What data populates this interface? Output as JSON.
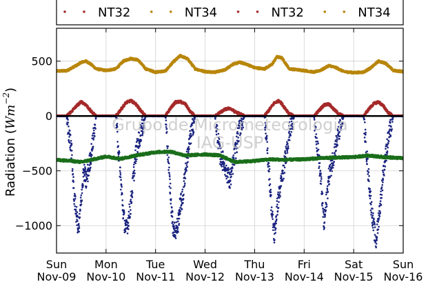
{
  "chart_data": {
    "type": "scatter",
    "title": "",
    "xlabel": "",
    "ylabel": "Radiation (Wm^-2)",
    "ylabel_parts": {
      "text": "Radiation (",
      "unit_base": "Wm",
      "unit_exp": "−2",
      "close": ")"
    },
    "xlim": [
      0,
      7
    ],
    "ylim": [
      -1250,
      800
    ],
    "yticks": [
      500,
      0,
      -500,
      -1000
    ],
    "ytick_labels": [
      "500",
      "0",
      "−500",
      "−1000"
    ],
    "xticks": [
      0,
      1,
      2,
      3,
      4,
      5,
      6,
      7
    ],
    "xtick_labels": [
      [
        "Sun",
        "Nov-09"
      ],
      [
        "Mon",
        "Nov-10"
      ],
      [
        "Tue",
        "Nov-11"
      ],
      [
        "Wed",
        "Nov-12"
      ],
      [
        "Thu",
        "Nov-13"
      ],
      [
        "Fri",
        "Nov-14"
      ],
      [
        "Sat",
        "Nov-15"
      ],
      [
        "Sun",
        "Nov-16"
      ]
    ],
    "grid": true,
    "legend_position": "top",
    "legend": [
      {
        "name": "NT32",
        "color": "#a52a2a"
      },
      {
        "name": "NT34",
        "color": "#b8860b"
      },
      {
        "name": "NT32",
        "color": "#a52a2a"
      },
      {
        "name": "NT34",
        "color": "#b8860b"
      }
    ],
    "series": [
      {
        "name": "NT34",
        "color": "#b8860b",
        "x": [
          0,
          0.2,
          0.4,
          0.5,
          0.6,
          0.7,
          0.8,
          1.0,
          1.2,
          1.35,
          1.5,
          1.65,
          1.8,
          2.0,
          2.2,
          2.35,
          2.5,
          2.65,
          2.8,
          3.0,
          3.2,
          3.4,
          3.55,
          3.7,
          3.85,
          4.0,
          4.2,
          4.35,
          4.45,
          4.55,
          4.7,
          5.0,
          5.2,
          5.35,
          5.5,
          5.65,
          5.8,
          6.0,
          6.2,
          6.35,
          6.5,
          6.65,
          6.8,
          7.0
        ],
        "values": [
          410,
          412,
          460,
          490,
          500,
          470,
          430,
          415,
          430,
          500,
          525,
          510,
          430,
          400,
          410,
          490,
          550,
          520,
          430,
          405,
          400,
          420,
          470,
          490,
          470,
          440,
          430,
          470,
          540,
          530,
          430,
          415,
          400,
          420,
          460,
          440,
          405,
          395,
          400,
          440,
          500,
          480,
          415,
          405
        ]
      },
      {
        "name": "NT32",
        "color": "#a52a2a",
        "x": [
          0,
          0.2,
          0.3,
          0.4,
          0.5,
          0.6,
          0.7,
          0.8,
          1.0,
          1.2,
          1.3,
          1.4,
          1.5,
          1.6,
          1.7,
          1.8,
          2.0,
          2.2,
          2.3,
          2.4,
          2.5,
          2.6,
          2.7,
          2.8,
          3.0,
          3.2,
          3.3,
          3.4,
          3.5,
          3.6,
          3.7,
          3.8,
          4.0,
          4.2,
          4.3,
          4.4,
          4.5,
          4.6,
          4.7,
          4.8,
          5.0,
          5.2,
          5.3,
          5.4,
          5.5,
          5.6,
          5.7,
          5.8,
          6.0,
          6.2,
          6.3,
          6.4,
          6.5,
          6.6,
          6.7,
          6.8,
          7.0
        ],
        "values": [
          0,
          0,
          40,
          90,
          130,
          100,
          40,
          0,
          0,
          0,
          60,
          120,
          140,
          110,
          50,
          0,
          0,
          0,
          70,
          125,
          130,
          110,
          40,
          0,
          0,
          0,
          30,
          60,
          70,
          40,
          20,
          0,
          0,
          0,
          60,
          120,
          140,
          80,
          20,
          0,
          0,
          0,
          50,
          100,
          110,
          60,
          20,
          0,
          0,
          0,
          60,
          110,
          130,
          90,
          30,
          0,
          0
        ]
      },
      {
        "name": "NT32",
        "color": "#1a237e",
        "x": [
          0,
          0.2,
          0.3,
          0.35,
          0.4,
          0.45,
          0.5,
          0.55,
          0.6,
          0.7,
          0.8,
          1.0,
          1.2,
          1.3,
          1.35,
          1.4,
          1.45,
          1.5,
          1.6,
          1.7,
          1.8,
          2.0,
          2.2,
          2.3,
          2.35,
          2.4,
          2.45,
          2.5,
          2.55,
          2.6,
          2.7,
          2.8,
          3.0,
          3.2,
          3.3,
          3.4,
          3.5,
          3.6,
          3.7,
          3.8,
          4.0,
          4.2,
          4.3,
          4.35,
          4.4,
          4.45,
          4.5,
          4.6,
          4.7,
          4.8,
          5.0,
          5.2,
          5.3,
          5.35,
          5.4,
          5.5,
          5.6,
          5.7,
          5.8,
          6.0,
          6.2,
          6.3,
          6.35,
          6.4,
          6.45,
          6.5,
          6.55,
          6.6,
          6.7,
          6.8,
          7.0
        ],
        "values": [
          0,
          0,
          -300,
          -700,
          -900,
          -1050,
          -750,
          -500,
          -600,
          -350,
          0,
          0,
          0,
          -600,
          -900,
          -1050,
          -950,
          -800,
          -350,
          -150,
          0,
          0,
          0,
          -700,
          -1000,
          -1050,
          -1000,
          -800,
          -750,
          -500,
          -200,
          0,
          0,
          0,
          -350,
          -450,
          -600,
          -350,
          -100,
          0,
          0,
          0,
          -550,
          -900,
          -1100,
          -850,
          -700,
          -450,
          -150,
          0,
          0,
          0,
          -400,
          -650,
          -1000,
          -550,
          -350,
          -150,
          0,
          0,
          0,
          -550,
          -800,
          -1000,
          -1150,
          -950,
          -750,
          -500,
          -200,
          0,
          0
        ]
      },
      {
        "name": "NT34",
        "color": "#1b6e1b",
        "x": [
          0,
          0.3,
          0.5,
          0.7,
          1.0,
          1.3,
          1.6,
          2.0,
          2.3,
          2.6,
          3.0,
          3.3,
          3.6,
          4.0,
          4.3,
          4.6,
          5.0,
          5.3,
          5.6,
          6.0,
          6.3,
          6.6,
          7.0
        ],
        "values": [
          -400,
          -410,
          -420,
          -400,
          -370,
          -390,
          -360,
          -330,
          -325,
          -360,
          -350,
          -360,
          -420,
          -410,
          -395,
          -400,
          -395,
          -385,
          -380,
          -375,
          -360,
          -375,
          -385
        ]
      }
    ],
    "zero_line": 0,
    "watermark": [
      "Grupo de Micrometeorologia",
      "IAG-USP"
    ]
  }
}
